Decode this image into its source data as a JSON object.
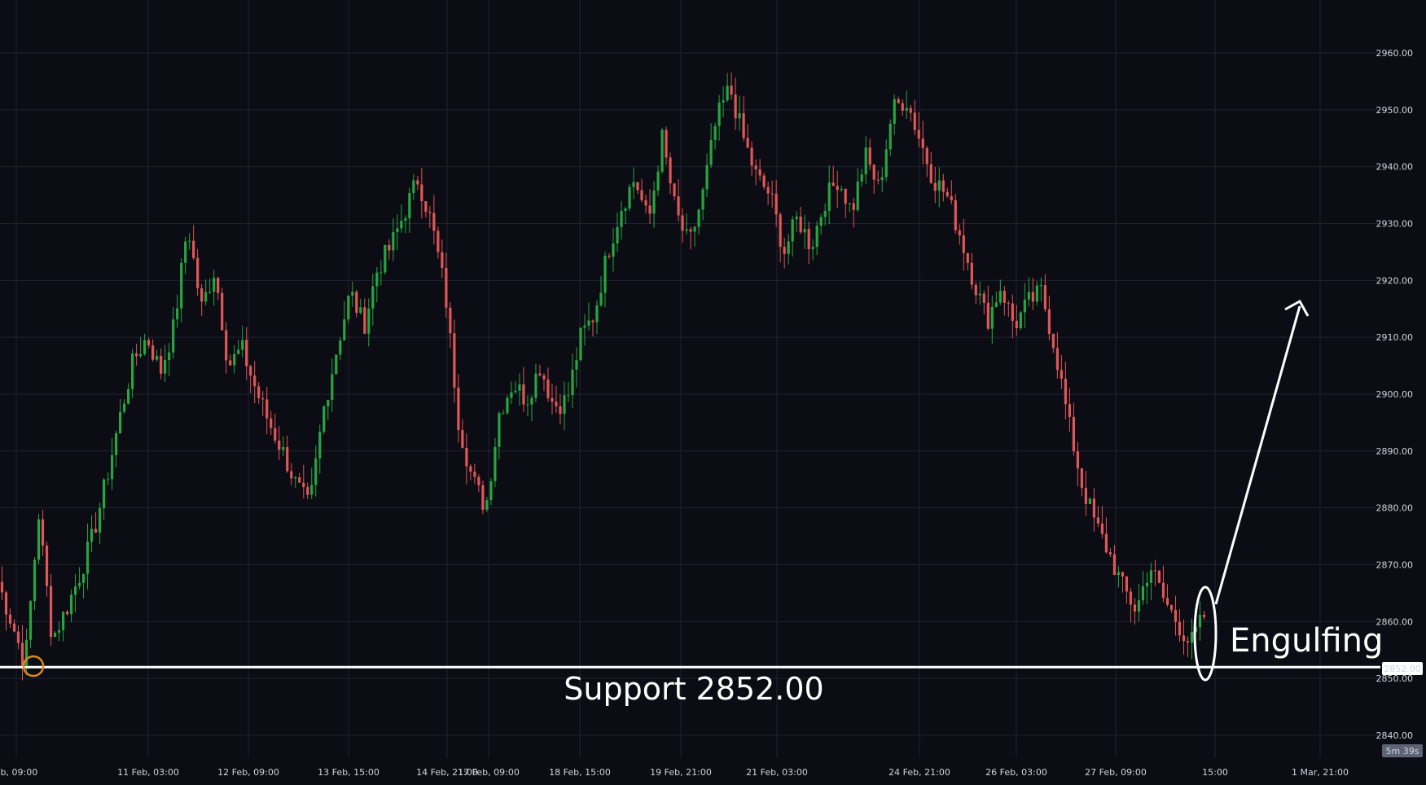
{
  "chart_data": {
    "type": "candlestick",
    "colors": {
      "background": "#0c0c14",
      "grid": "#1f2230",
      "up": "#26a641",
      "down": "#e05757",
      "support_line": "#ffffff",
      "axis_text": "#d1d4dc",
      "price_tag_bg": "#ffffff",
      "timer_bg": "#5d6475",
      "low_marker": "#d98b1f",
      "annotation": "#ffffff"
    },
    "ylim": [
      2835,
      2968
    ],
    "y_ticks": [
      {
        "value": 2960,
        "label": "2960.00"
      },
      {
        "value": 2950,
        "label": "2950.00"
      },
      {
        "value": 2940,
        "label": "2940.00"
      },
      {
        "value": 2930,
        "label": "2930.00"
      },
      {
        "value": 2920,
        "label": "2920.00"
      },
      {
        "value": 2910,
        "label": "2910.00"
      },
      {
        "value": 2900,
        "label": "2900.00"
      },
      {
        "value": 2890,
        "label": "2890.00"
      },
      {
        "value": 2880,
        "label": "2880.00"
      },
      {
        "value": 2870,
        "label": "2870.00"
      },
      {
        "value": 2860,
        "label": "2860.00"
      },
      {
        "value": 2850,
        "label": "2850.00"
      },
      {
        "value": 2840,
        "label": "2840.00"
      }
    ],
    "x_ticks": [
      "eb, 09:00",
      "11 Feb, 03:00",
      "12 Feb, 09:00",
      "13 Feb, 15:00",
      "14 Feb, 21:00",
      "17 Feb, 09:00",
      "18 Feb, 15:00",
      "19 Feb, 21:00",
      "21 Feb, 03:00",
      "24 Feb, 21:00",
      "26 Feb, 03:00",
      "27 Feb, 09:00",
      "15:00",
      "1 Mar, 21:00"
    ],
    "price_anchors": [
      2867,
      2860,
      2852.5,
      2879,
      2857,
      2862,
      2868,
      2875,
      2885,
      2896,
      2906,
      2910,
      2904,
      2912,
      2930,
      2915,
      2922,
      2905,
      2908,
      2901,
      2895,
      2890,
      2884,
      2880,
      2897,
      2908,
      2918,
      2912,
      2922,
      2926,
      2932,
      2938,
      2930,
      2918,
      2895,
      2885,
      2880,
      2897,
      2902,
      2899,
      2905,
      2898,
      2899,
      2910,
      2914,
      2925,
      2933,
      2938,
      2930,
      2945,
      2932,
      2926,
      2935,
      2948,
      2954,
      2945,
      2938,
      2935,
      2925,
      2931,
      2926,
      2934,
      2938,
      2932,
      2942,
      2936,
      2950,
      2952,
      2945,
      2938,
      2935,
      2928,
      2920,
      2913,
      2919,
      2912,
      2916,
      2918,
      2908,
      2895,
      2884,
      2877,
      2872,
      2866,
      2862,
      2870,
      2864,
      2860,
      2856,
      2861
    ],
    "support": {
      "value": 2852,
      "label": "Support 2852.00",
      "tag": "2852.00"
    },
    "pattern_label": "Engulfing",
    "timer": "5m 39s",
    "grid": true
  }
}
